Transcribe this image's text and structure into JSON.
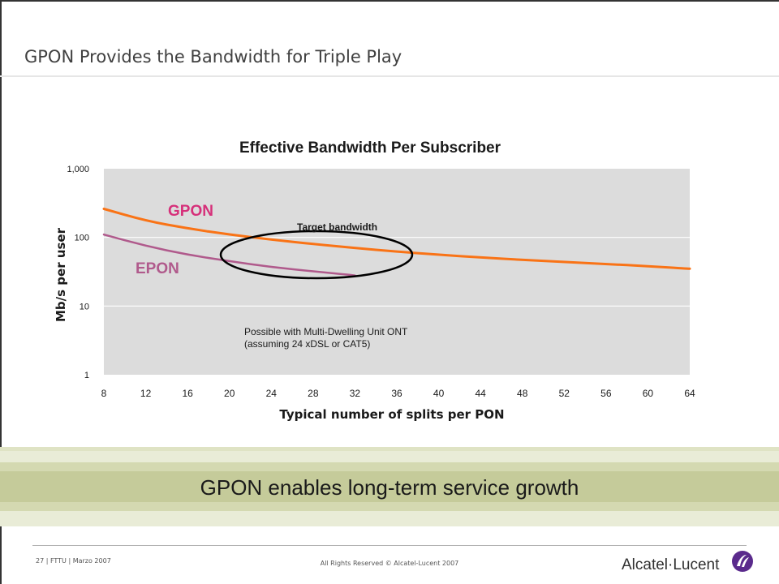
{
  "slide": {
    "title": "GPON Provides the Bandwidth for Triple Play",
    "banner_text": "GPON enables long-term service growth",
    "footer_left": "27 | FTTU | Marzo 2007",
    "footer_center": "All Rights Reserved © Alcatel-Lucent 2007",
    "logo_text": "Alcatel·Lucent",
    "logo_icon": "alcatel-lucent-swirl-icon"
  },
  "colors": {
    "gpon": "#f97316",
    "epon": "#b05a8c",
    "gpon_label": "#d6307a",
    "epon_label": "#b05a8c",
    "plot_bg": "#dcdcdc",
    "band": "#c5cb9a"
  },
  "chart_data": {
    "type": "line",
    "title": "Effective Bandwidth Per Subscriber",
    "xlabel": "Typical number of splits per PON",
    "ylabel": "Mb/s per user",
    "xlim": [
      8,
      64
    ],
    "ylim": [
      1,
      1000
    ],
    "yscale": "log",
    "grid": true,
    "x_ticks": [
      "8",
      "12",
      "16",
      "20",
      "24",
      "28",
      "32",
      "36",
      "40",
      "44",
      "48",
      "52",
      "56",
      "60",
      "64"
    ],
    "y_ticks": [
      "1",
      "10",
      "100",
      "1,000"
    ],
    "series": [
      {
        "name": "GPON",
        "x": [
          8,
          12,
          16,
          20,
          24,
          28,
          32,
          36,
          40,
          44,
          48,
          52,
          56,
          60,
          64
        ],
        "y": [
          260,
          175,
          135,
          110,
          93,
          80,
          70,
          62,
          56,
          51,
          47,
          44,
          41,
          38,
          35
        ]
      },
      {
        "name": "EPON",
        "x": [
          8,
          12,
          16,
          20,
          24,
          28,
          32
        ],
        "y": [
          110,
          75,
          56,
          45,
          37,
          32,
          28
        ]
      }
    ],
    "annotations": [
      {
        "text": "Target bandwidth",
        "x": 24,
        "y": 50,
        "shape": "ellipse"
      },
      {
        "text": "Possible with Multi-Dwelling Unit ONT",
        "x": 20,
        "y": 4
      },
      {
        "text": "(assuming 24 xDSL or CAT5)",
        "x": 20,
        "y": 3
      }
    ]
  }
}
